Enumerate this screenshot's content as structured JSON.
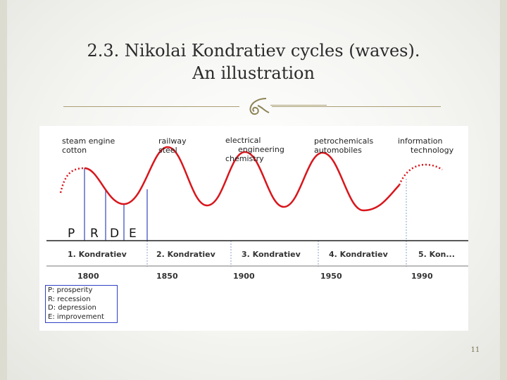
{
  "slide": {
    "title_line1": "2.3. Nikolai Kondratiev cycles (waves).",
    "title_line2": "An illustration",
    "slide_number": "11",
    "accent_color": "#a99f73",
    "flourish_icon": "ornament-flourish-icon"
  },
  "diagram": {
    "innovations": [
      {
        "lines": [
          "steam engine",
          "cotton"
        ]
      },
      {
        "lines": [
          "railway",
          "steel"
        ]
      },
      {
        "lines": [
          "electrical",
          "engineering",
          "chemistry"
        ]
      },
      {
        "lines": [
          "petrochemicals",
          "automobiles"
        ]
      },
      {
        "lines": [
          "information",
          "technology"
        ]
      }
    ],
    "phases": [
      "P",
      "R",
      "D",
      "E"
    ],
    "kondratievs": [
      "1. Kondratiev",
      "2. Kondratiev",
      "3. Kondratiev",
      "4. Kondratiev",
      "5. Kon..."
    ],
    "years": [
      "1800",
      "1850",
      "1900",
      "1950",
      "1990"
    ],
    "legend": [
      "P: prosperity",
      "R: recession",
      "D: depression",
      "E: improvement"
    ],
    "wave_color": "#d8161c",
    "phase_line_color": "#3344bb"
  }
}
